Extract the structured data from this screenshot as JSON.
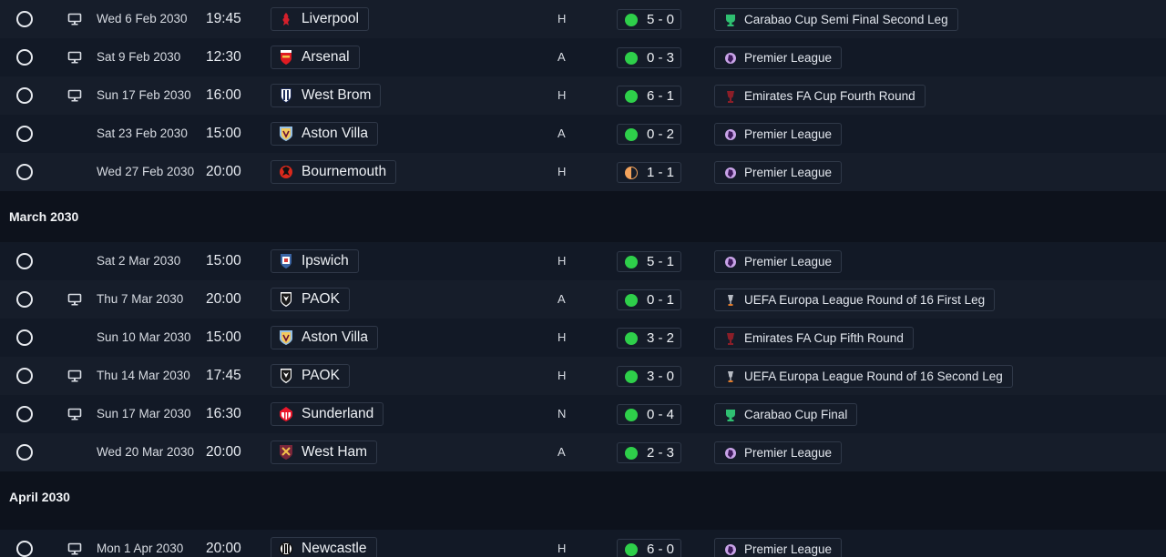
{
  "colors": {
    "win": "#2ecf4a",
    "draw": "#f3a35c",
    "row_a": "#161d2a",
    "row_b": "#121926"
  },
  "sections": [
    {
      "month": "",
      "fixtures": [
        {
          "tv": true,
          "date": "Wed 6 Feb 2030",
          "time": "19:45",
          "opponent": "Liverpool",
          "crest": "liverpool-crest",
          "venue": "H",
          "result": "win",
          "score": "5 - 0",
          "competition": "Carabao Cup Semi Final Second Leg",
          "comp_icon": "carabao-cup-icon"
        },
        {
          "tv": true,
          "date": "Sat 9 Feb 2030",
          "time": "12:30",
          "opponent": "Arsenal",
          "crest": "arsenal-crest",
          "venue": "A",
          "result": "win",
          "score": "0 - 3",
          "competition": "Premier League",
          "comp_icon": "premier-league-icon"
        },
        {
          "tv": true,
          "date": "Sun 17 Feb 2030",
          "time": "16:00",
          "opponent": "West Brom",
          "crest": "west-brom-crest",
          "venue": "H",
          "result": "win",
          "score": "6 - 1",
          "competition": "Emirates FA Cup Fourth Round",
          "comp_icon": "fa-cup-icon"
        },
        {
          "tv": false,
          "date": "Sat 23 Feb 2030",
          "time": "15:00",
          "opponent": "Aston Villa",
          "crest": "aston-villa-crest",
          "venue": "A",
          "result": "win",
          "score": "0 - 2",
          "competition": "Premier League",
          "comp_icon": "premier-league-icon"
        },
        {
          "tv": false,
          "date": "Wed 27 Feb 2030",
          "time": "20:00",
          "opponent": "Bournemouth",
          "crest": "bournemouth-crest",
          "venue": "H",
          "result": "draw",
          "score": "1 - 1",
          "competition": "Premier League",
          "comp_icon": "premier-league-icon"
        }
      ]
    },
    {
      "month": "March 2030",
      "fixtures": [
        {
          "tv": false,
          "date": "Sat 2 Mar 2030",
          "time": "15:00",
          "opponent": "Ipswich",
          "crest": "ipswich-crest",
          "venue": "H",
          "result": "win",
          "score": "5 - 1",
          "competition": "Premier League",
          "comp_icon": "premier-league-icon"
        },
        {
          "tv": true,
          "date": "Thu 7 Mar 2030",
          "time": "20:00",
          "opponent": "PAOK",
          "crest": "paok-crest",
          "venue": "A",
          "result": "win",
          "score": "0 - 1",
          "competition": "UEFA Europa League Round of 16 First Leg",
          "comp_icon": "europa-league-icon"
        },
        {
          "tv": false,
          "date": "Sun 10 Mar 2030",
          "time": "15:00",
          "opponent": "Aston Villa",
          "crest": "aston-villa-crest",
          "venue": "H",
          "result": "win",
          "score": "3 - 2",
          "competition": "Emirates FA Cup Fifth Round",
          "comp_icon": "fa-cup-icon"
        },
        {
          "tv": true,
          "date": "Thu 14 Mar 2030",
          "time": "17:45",
          "opponent": "PAOK",
          "crest": "paok-crest",
          "venue": "H",
          "result": "win",
          "score": "3 - 0",
          "competition": "UEFA Europa League Round of 16 Second Leg",
          "comp_icon": "europa-league-icon"
        },
        {
          "tv": true,
          "date": "Sun 17 Mar 2030",
          "time": "16:30",
          "opponent": "Sunderland",
          "crest": "sunderland-crest",
          "venue": "N",
          "result": "win",
          "score": "0 - 4",
          "competition": "Carabao Cup Final",
          "comp_icon": "carabao-cup-icon"
        },
        {
          "tv": false,
          "date": "Wed 20 Mar 2030",
          "time": "20:00",
          "opponent": "West Ham",
          "crest": "west-ham-crest",
          "venue": "A",
          "result": "win",
          "score": "2 - 3",
          "competition": "Premier League",
          "comp_icon": "premier-league-icon"
        }
      ]
    },
    {
      "month": "April 2030",
      "fixtures": [
        {
          "tv": true,
          "date": "Mon 1 Apr 2030",
          "time": "20:00",
          "opponent": "Newcastle",
          "crest": "newcastle-crest",
          "venue": "H",
          "result": "win",
          "score": "6 - 0",
          "competition": "Premier League",
          "comp_icon": "premier-league-icon"
        }
      ]
    }
  ]
}
